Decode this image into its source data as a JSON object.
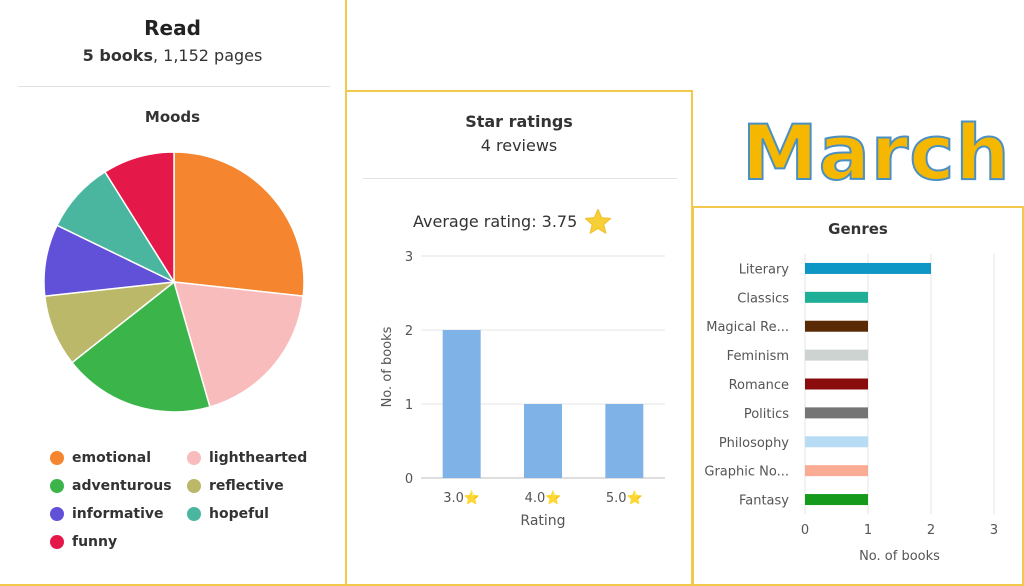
{
  "read": {
    "title": "Read",
    "books_label": "5 books",
    "pages_label": ", 1,152 pages"
  },
  "moods": {
    "title": "Moods",
    "legend": [
      {
        "label": "emotional",
        "color": "#f5862f"
      },
      {
        "label": "lighthearted",
        "color": "#f9bcbc"
      },
      {
        "label": "adventurous",
        "color": "#3bb54a"
      },
      {
        "label": "reflective",
        "color": "#bcb86a"
      },
      {
        "label": "informative",
        "color": "#6150d8"
      },
      {
        "label": "hopeful",
        "color": "#4bb6a0"
      },
      {
        "label": "funny",
        "color": "#e5184a"
      }
    ]
  },
  "stars": {
    "title": "Star ratings",
    "reviews": "4 reviews",
    "average": "Average rating: 3.75",
    "star_icon": "star-icon"
  },
  "march": {
    "text": "March"
  },
  "genres": {
    "title": "Genres"
  },
  "chart_data": [
    {
      "type": "pie",
      "title": "Moods",
      "labels": [
        "emotional",
        "lighthearted",
        "adventurous",
        "reflective",
        "informative",
        "hopeful",
        "funny"
      ],
      "values": [
        27,
        19,
        19,
        9,
        9,
        9,
        9
      ],
      "colors": [
        "#f5862f",
        "#f9bcbc",
        "#3bb54a",
        "#bcb86a",
        "#6150d8",
        "#4bb6a0",
        "#e5184a"
      ]
    },
    {
      "type": "bar",
      "title": "Star ratings",
      "categories": [
        "3.0⭐",
        "4.0⭐",
        "5.0⭐"
      ],
      "values": [
        2,
        1,
        1
      ],
      "xlabel": "Rating",
      "ylabel": "No. of books",
      "ylim": [
        0,
        3
      ],
      "yticks": [
        "0",
        "1",
        "2",
        "3"
      ],
      "color": "#7fb3e8",
      "grid": true
    },
    {
      "type": "bar",
      "orientation": "horizontal",
      "title": "Genres",
      "categories": [
        "Literary",
        "Classics",
        "Magical Re...",
        "Feminism",
        "Romance",
        "Politics",
        "Philosophy",
        "Graphic No...",
        "Fantasy"
      ],
      "values": [
        2,
        1,
        1,
        1,
        1,
        1,
        1,
        1,
        1
      ],
      "colors": [
        "#0e97c4",
        "#1fae96",
        "#5a2a05",
        "#cdd3d0",
        "#8b0c0c",
        "#757575",
        "#b9dcf5",
        "#f9ac93",
        "#159a1c"
      ],
      "xlabel": "No. of books",
      "xlim": [
        0,
        3
      ],
      "xticks": [
        "0",
        "1",
        "2",
        "3"
      ],
      "grid": true
    }
  ]
}
